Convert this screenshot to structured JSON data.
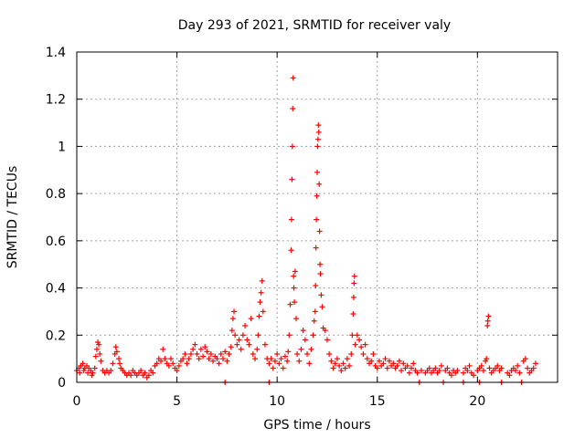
{
  "chart_data": {
    "type": "scatter",
    "title": "Day 293 of 2021, SRMTID for receiver valy",
    "xlabel": "GPS time / hours",
    "ylabel": "SRMTID / TECUs",
    "xlim": [
      0,
      24
    ],
    "ylim": [
      0,
      1.4
    ],
    "x_ticks": [
      0,
      5,
      10,
      15,
      20
    ],
    "x_tick_labels": [
      "0",
      "5",
      "10",
      "15",
      "20"
    ],
    "y_ticks": [
      0,
      0.2,
      0.4,
      0.6,
      0.8,
      1.0,
      1.2,
      1.4
    ],
    "y_tick_labels": [
      "0",
      "0.2",
      "0.4",
      "0.6",
      "0.8",
      "1",
      "1.2",
      "1.4"
    ],
    "grid": true,
    "marker": "+",
    "series": [
      {
        "name": "SRMTID",
        "color": "#ff0000",
        "points": [
          [
            0.0,
            0.05
          ],
          [
            0.1,
            0.06
          ],
          [
            0.15,
            0.04
          ],
          [
            0.2,
            0.07
          ],
          [
            0.3,
            0.08
          ],
          [
            0.35,
            0.05
          ],
          [
            0.4,
            0.06
          ],
          [
            0.5,
            0.07
          ],
          [
            0.55,
            0.04
          ],
          [
            0.6,
            0.06
          ],
          [
            0.7,
            0.05
          ],
          [
            0.75,
            0.03
          ],
          [
            0.8,
            0.04
          ],
          [
            0.9,
            0.06
          ],
          [
            0.95,
            0.11
          ],
          [
            1.0,
            0.14
          ],
          [
            1.05,
            0.17
          ],
          [
            1.1,
            0.16
          ],
          [
            1.15,
            0.12
          ],
          [
            1.2,
            0.09
          ],
          [
            1.3,
            0.05
          ],
          [
            1.4,
            0.04
          ],
          [
            1.5,
            0.05
          ],
          [
            1.6,
            0.04
          ],
          [
            1.7,
            0.05
          ],
          [
            1.8,
            0.08
          ],
          [
            1.9,
            0.12
          ],
          [
            1.95,
            0.15
          ],
          [
            2.0,
            0.13
          ],
          [
            2.1,
            0.1
          ],
          [
            2.15,
            0.08
          ],
          [
            2.2,
            0.06
          ],
          [
            2.3,
            0.05
          ],
          [
            2.4,
            0.04
          ],
          [
            2.5,
            0.03
          ],
          [
            2.6,
            0.04
          ],
          [
            2.7,
            0.03
          ],
          [
            2.8,
            0.05
          ],
          [
            2.9,
            0.04
          ],
          [
            3.0,
            0.03
          ],
          [
            3.1,
            0.04
          ],
          [
            3.2,
            0.05
          ],
          [
            3.3,
            0.03
          ],
          [
            3.4,
            0.04
          ],
          [
            3.5,
            0.02
          ],
          [
            3.6,
            0.03
          ],
          [
            3.7,
            0.05
          ],
          [
            3.8,
            0.04
          ],
          [
            3.9,
            0.07
          ],
          [
            4.0,
            0.08
          ],
          [
            4.1,
            0.1
          ],
          [
            4.2,
            0.09
          ],
          [
            4.3,
            0.14
          ],
          [
            4.4,
            0.1
          ],
          [
            4.5,
            0.08
          ],
          [
            4.6,
            0.07
          ],
          [
            4.7,
            0.1
          ],
          [
            4.8,
            0.08
          ],
          [
            4.9,
            0.06
          ],
          [
            5.0,
            0.05
          ],
          [
            5.1,
            0.07
          ],
          [
            5.2,
            0.09
          ],
          [
            5.3,
            0.1
          ],
          [
            5.4,
            0.12
          ],
          [
            5.5,
            0.08
          ],
          [
            5.6,
            0.1
          ],
          [
            5.7,
            0.12
          ],
          [
            5.8,
            0.14
          ],
          [
            5.9,
            0.16
          ],
          [
            6.0,
            0.12
          ],
          [
            6.1,
            0.1
          ],
          [
            6.2,
            0.14
          ],
          [
            6.3,
            0.11
          ],
          [
            6.4,
            0.15
          ],
          [
            6.5,
            0.13
          ],
          [
            6.6,
            0.1
          ],
          [
            6.7,
            0.12
          ],
          [
            6.8,
            0.09
          ],
          [
            6.9,
            0.11
          ],
          [
            7.0,
            0.1
          ],
          [
            7.1,
            0.08
          ],
          [
            7.2,
            0.12
          ],
          [
            7.3,
            0.1
          ],
          [
            7.4,
            0.13
          ],
          [
            7.5,
            0.09
          ],
          [
            7.6,
            0.12
          ],
          [
            7.7,
            0.15
          ],
          [
            7.75,
            0.22
          ],
          [
            7.8,
            0.27
          ],
          [
            7.85,
            0.3
          ],
          [
            7.9,
            0.2
          ],
          [
            8.0,
            0.16
          ],
          [
            8.1,
            0.18
          ],
          [
            8.2,
            0.14
          ],
          [
            8.3,
            0.2
          ],
          [
            8.4,
            0.24
          ],
          [
            8.5,
            0.18
          ],
          [
            8.6,
            0.16
          ],
          [
            8.7,
            0.27
          ],
          [
            8.8,
            0.12
          ],
          [
            8.9,
            0.1
          ],
          [
            9.0,
            0.14
          ],
          [
            9.05,
            0.2
          ],
          [
            9.1,
            0.28
          ],
          [
            9.15,
            0.34
          ],
          [
            9.2,
            0.38
          ],
          [
            9.25,
            0.43
          ],
          [
            9.3,
            0.3
          ],
          [
            9.4,
            0.16
          ],
          [
            9.5,
            0.1
          ],
          [
            9.6,
            0.08
          ],
          [
            9.7,
            0.1
          ],
          [
            9.8,
            0.06
          ],
          [
            9.9,
            0.09
          ],
          [
            10.0,
            0.12
          ],
          [
            10.1,
            0.08
          ],
          [
            10.2,
            0.1
          ],
          [
            10.3,
            0.06
          ],
          [
            10.4,
            0.11
          ],
          [
            10.5,
            0.09
          ],
          [
            10.55,
            0.13
          ],
          [
            10.6,
            0.2
          ],
          [
            10.65,
            0.33
          ],
          [
            10.7,
            0.56
          ],
          [
            10.72,
            0.69
          ],
          [
            10.74,
            0.86
          ],
          [
            10.76,
            1.0
          ],
          [
            10.78,
            1.16
          ],
          [
            10.8,
            1.29
          ],
          [
            10.82,
            0.45
          ],
          [
            10.84,
            0.4
          ],
          [
            10.86,
            0.34
          ],
          [
            10.9,
            0.47
          ],
          [
            10.95,
            0.27
          ],
          [
            11.0,
            0.12
          ],
          [
            11.1,
            0.09
          ],
          [
            11.2,
            0.14
          ],
          [
            11.3,
            0.22
          ],
          [
            11.4,
            0.18
          ],
          [
            11.5,
            0.12
          ],
          [
            11.6,
            0.08
          ],
          [
            11.7,
            0.14
          ],
          [
            11.8,
            0.2
          ],
          [
            11.85,
            0.26
          ],
          [
            11.9,
            0.3
          ],
          [
            11.92,
            0.41
          ],
          [
            11.94,
            0.57
          ],
          [
            11.96,
            0.69
          ],
          [
            11.98,
            0.79
          ],
          [
            12.0,
            0.89
          ],
          [
            12.02,
            1.0
          ],
          [
            12.04,
            1.03
          ],
          [
            12.06,
            1.09
          ],
          [
            12.08,
            1.06
          ],
          [
            12.1,
            0.84
          ],
          [
            12.12,
            0.64
          ],
          [
            12.14,
            0.5
          ],
          [
            12.16,
            0.46
          ],
          [
            12.2,
            0.37
          ],
          [
            12.25,
            0.32
          ],
          [
            12.3,
            0.23
          ],
          [
            12.4,
            0.22
          ],
          [
            12.5,
            0.18
          ],
          [
            12.6,
            0.12
          ],
          [
            12.7,
            0.09
          ],
          [
            12.8,
            0.06
          ],
          [
            12.9,
            0.08
          ],
          [
            13.0,
            0.1
          ],
          [
            13.1,
            0.07
          ],
          [
            13.2,
            0.05
          ],
          [
            13.3,
            0.08
          ],
          [
            13.4,
            0.06
          ],
          [
            13.5,
            0.1
          ],
          [
            13.6,
            0.07
          ],
          [
            13.7,
            0.12
          ],
          [
            13.75,
            0.2
          ],
          [
            13.8,
            0.29
          ],
          [
            13.82,
            0.36
          ],
          [
            13.84,
            0.42
          ],
          [
            13.86,
            0.45
          ],
          [
            13.9,
            0.16
          ],
          [
            14.0,
            0.2
          ],
          [
            14.1,
            0.18
          ],
          [
            14.2,
            0.15
          ],
          [
            14.3,
            0.12
          ],
          [
            14.4,
            0.16
          ],
          [
            14.5,
            0.1
          ],
          [
            14.6,
            0.08
          ],
          [
            14.7,
            0.09
          ],
          [
            14.8,
            0.12
          ],
          [
            14.9,
            0.07
          ],
          [
            15.0,
            0.06
          ],
          [
            15.1,
            0.09
          ],
          [
            15.2,
            0.07
          ],
          [
            15.3,
            0.08
          ],
          [
            15.4,
            0.1
          ],
          [
            15.5,
            0.06
          ],
          [
            15.6,
            0.09
          ],
          [
            15.7,
            0.07
          ],
          [
            15.8,
            0.08
          ],
          [
            15.9,
            0.06
          ],
          [
            16.0,
            0.07
          ],
          [
            16.1,
            0.09
          ],
          [
            16.2,
            0.05
          ],
          [
            16.3,
            0.08
          ],
          [
            16.4,
            0.06
          ],
          [
            16.5,
            0.07
          ],
          [
            16.6,
            0.04
          ],
          [
            16.7,
            0.06
          ],
          [
            16.8,
            0.08
          ],
          [
            16.9,
            0.05
          ],
          [
            17.0,
            0.04
          ],
          [
            17.2,
            0.05
          ],
          [
            17.4,
            0.04
          ],
          [
            17.5,
            0.05
          ],
          [
            17.6,
            0.06
          ],
          [
            17.7,
            0.04
          ],
          [
            17.8,
            0.05
          ],
          [
            17.9,
            0.06
          ],
          [
            18.0,
            0.04
          ],
          [
            18.1,
            0.05
          ],
          [
            18.2,
            0.07
          ],
          [
            18.4,
            0.05
          ],
          [
            18.5,
            0.06
          ],
          [
            18.6,
            0.04
          ],
          [
            18.7,
            0.03
          ],
          [
            18.8,
            0.05
          ],
          [
            18.9,
            0.04
          ],
          [
            19.0,
            0.05
          ],
          [
            19.3,
            0.04
          ],
          [
            19.4,
            0.06
          ],
          [
            19.5,
            0.05
          ],
          [
            19.6,
            0.07
          ],
          [
            19.7,
            0.04
          ],
          [
            19.8,
            0.03
          ],
          [
            20.0,
            0.05
          ],
          [
            20.1,
            0.06
          ],
          [
            20.2,
            0.07
          ],
          [
            20.3,
            0.05
          ],
          [
            20.4,
            0.09
          ],
          [
            20.45,
            0.1
          ],
          [
            20.5,
            0.24
          ],
          [
            20.52,
            0.26
          ],
          [
            20.55,
            0.28
          ],
          [
            20.6,
            0.06
          ],
          [
            20.7,
            0.04
          ],
          [
            20.8,
            0.05
          ],
          [
            20.9,
            0.06
          ],
          [
            21.0,
            0.07
          ],
          [
            21.1,
            0.05
          ],
          [
            21.2,
            0.06
          ],
          [
            21.5,
            0.04
          ],
          [
            21.6,
            0.03
          ],
          [
            21.7,
            0.05
          ],
          [
            21.8,
            0.06
          ],
          [
            21.9,
            0.05
          ],
          [
            22.0,
            0.07
          ],
          [
            22.1,
            0.04
          ],
          [
            22.3,
            0.09
          ],
          [
            22.4,
            0.1
          ],
          [
            22.5,
            0.06
          ],
          [
            22.6,
            0.04
          ],
          [
            22.7,
            0.05
          ],
          [
            22.8,
            0.06
          ],
          [
            22.9,
            0.08
          ],
          [
            7.4,
            0.0
          ],
          [
            9.6,
            0.0
          ],
          [
            17.1,
            0.0
          ],
          [
            18.3,
            0.0
          ],
          [
            19.3,
            0.0
          ],
          [
            20.1,
            0.0
          ],
          [
            21.2,
            0.0
          ],
          [
            22.2,
            0.0
          ]
        ]
      }
    ]
  }
}
